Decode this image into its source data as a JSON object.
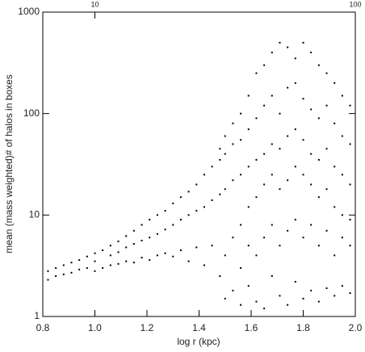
{
  "chart_data": {
    "type": "scatter",
    "xlabel": "log r (kpc)",
    "ylabel": "mean (mass weighted)# of halos in boxes",
    "xlim": [
      0.8,
      2.0
    ],
    "xticks": [
      {
        "value": 0.8,
        "label": "0.8"
      },
      {
        "value": 1.0,
        "label": "1.0"
      },
      {
        "value": 1.2,
        "label": "1.2"
      },
      {
        "value": 1.4,
        "label": "1.4"
      },
      {
        "value": 1.6,
        "label": "1.6"
      },
      {
        "value": 1.8,
        "label": "1.8"
      },
      {
        "value": 2.0,
        "label": "2.0"
      }
    ],
    "ylim": [
      1,
      1000
    ],
    "yticks": [
      1,
      10,
      100,
      1000
    ],
    "yscale": "log",
    "x2lim": [
      6.30957,
      100
    ],
    "x2ticks": [
      10,
      100
    ],
    "x2scale": "log",
    "color": "#000000",
    "x": [
      0.82,
      0.82,
      0.85,
      0.85,
      0.88,
      0.88,
      0.91,
      0.91,
      0.94,
      0.94,
      0.97,
      0.97,
      1.0,
      1.0,
      1.0,
      1.03,
      1.03,
      1.06,
      1.06,
      1.06,
      1.09,
      1.09,
      1.09,
      1.12,
      1.12,
      1.12,
      1.15,
      1.15,
      1.15,
      1.18,
      1.18,
      1.18,
      1.21,
      1.21,
      1.21,
      1.24,
      1.24,
      1.24,
      1.27,
      1.27,
      1.27,
      1.3,
      1.3,
      1.3,
      1.33,
      1.33,
      1.33,
      1.36,
      1.36,
      1.36,
      1.39,
      1.39,
      1.39,
      1.42,
      1.42,
      1.42,
      1.45,
      1.45,
      1.45,
      1.48,
      1.48,
      1.48,
      1.48,
      1.5,
      1.5,
      1.5,
      1.5,
      1.5,
      1.53,
      1.53,
      1.53,
      1.53,
      1.53,
      1.56,
      1.56,
      1.56,
      1.56,
      1.56,
      1.56,
      1.59,
      1.59,
      1.59,
      1.59,
      1.59,
      1.59,
      1.62,
      1.62,
      1.62,
      1.62,
      1.62,
      1.62,
      1.65,
      1.65,
      1.65,
      1.65,
      1.65,
      1.65,
      1.68,
      1.68,
      1.68,
      1.68,
      1.68,
      1.68,
      1.71,
      1.71,
      1.71,
      1.71,
      1.71,
      1.71,
      1.74,
      1.74,
      1.74,
      1.74,
      1.74,
      1.74,
      1.77,
      1.77,
      1.77,
      1.77,
      1.77,
      1.77,
      1.8,
      1.8,
      1.8,
      1.8,
      1.8,
      1.8,
      1.83,
      1.83,
      1.83,
      1.83,
      1.83,
      1.83,
      1.86,
      1.86,
      1.86,
      1.86,
      1.86,
      1.86,
      1.89,
      1.89,
      1.89,
      1.89,
      1.89,
      1.89,
      1.92,
      1.92,
      1.92,
      1.92,
      1.92,
      1.92,
      1.95,
      1.95,
      1.95,
      1.95,
      1.95,
      1.95,
      1.98,
      1.98,
      1.98,
      1.98,
      1.98,
      1.98
    ],
    "values": [
      2.3,
      2.8,
      2.5,
      3.0,
      2.6,
      3.2,
      2.7,
      3.4,
      2.9,
      3.6,
      3.0,
      3.9,
      2.8,
      3.5,
      4.2,
      3.0,
      4.5,
      3.2,
      4.0,
      5.0,
      3.3,
      4.3,
      5.5,
      3.5,
      4.8,
      6.2,
      3.4,
      5.2,
      7.0,
      3.8,
      5.6,
      8.0,
      3.6,
      6.0,
      9.0,
      4.0,
      6.5,
      10,
      4.2,
      7.2,
      11,
      3.9,
      8.0,
      13,
      4.5,
      9,
      15,
      3.5,
      10,
      17,
      4.8,
      11,
      20,
      3.2,
      12,
      25,
      5.0,
      14,
      30,
      2.5,
      16,
      35,
      45,
      1.5,
      4,
      18,
      40,
      60,
      1.8,
      6,
      22,
      50,
      80,
      1.3,
      3,
      8,
      25,
      55,
      100,
      2,
      5,
      12,
      30,
      70,
      150,
      1.4,
      4,
      15,
      35,
      90,
      250,
      1.2,
      6,
      20,
      40,
      120,
      300,
      2.5,
      8,
      25,
      50,
      150,
      400,
      1.6,
      5,
      18,
      45,
      100,
      500,
      1.3,
      7,
      22,
      60,
      180,
      450,
      2.2,
      9,
      30,
      70,
      200,
      350,
      1.5,
      6,
      25,
      55,
      140,
      500,
      1.8,
      8,
      20,
      40,
      110,
      400,
      1.4,
      5,
      15,
      35,
      90,
      300,
      1.9,
      7,
      18,
      45,
      120,
      250,
      1.6,
      4,
      12,
      30,
      80,
      200,
      2.0,
      6,
      10,
      25,
      60,
      150,
      1.7,
      5,
      9,
      20,
      50,
      120
    ]
  }
}
